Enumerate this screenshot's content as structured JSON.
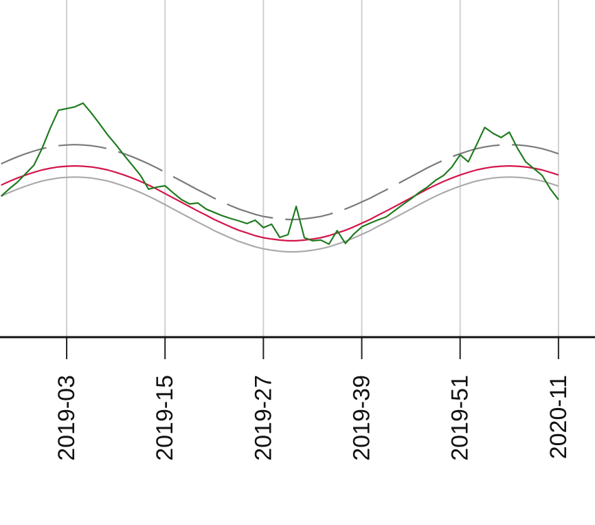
{
  "chart_data": {
    "type": "line",
    "categories": [
      null,
      null,
      null,
      null,
      null,
      null,
      null,
      null,
      "2019-03",
      null,
      null,
      null,
      null,
      null,
      null,
      null,
      null,
      null,
      null,
      null,
      "2019-15",
      null,
      null,
      null,
      null,
      null,
      null,
      null,
      null,
      null,
      null,
      null,
      "2019-27",
      null,
      null,
      null,
      null,
      null,
      null,
      null,
      null,
      null,
      null,
      null,
      "2019-39",
      null,
      null,
      null,
      null,
      null,
      null,
      null,
      null,
      null,
      null,
      null,
      "2019-51",
      null,
      null,
      null,
      null,
      null,
      null,
      null,
      null,
      null,
      null,
      null,
      "2020-11"
    ],
    "ylim": [
      0,
      100
    ],
    "grid": true,
    "series": [
      {
        "color": "#7a7a7a",
        "dashed": true,
        "values": [
          51.4,
          52.5,
          53.5,
          54.4,
          55.2,
          55.9,
          56.4,
          56.8,
          57.0,
          57.1,
          57.0,
          56.8,
          56.4,
          55.9,
          55.2,
          54.4,
          53.5,
          52.5,
          51.4,
          50.2,
          48.9,
          47.6,
          46.3,
          45.0,
          43.7,
          42.5,
          41.2,
          40.1,
          39.0,
          38.0,
          37.2,
          36.4,
          35.8,
          35.4,
          35.1,
          34.9,
          34.9,
          35.1,
          35.4,
          35.8,
          36.4,
          37.2,
          38.0,
          39.0,
          40.1,
          41.2,
          42.5,
          43.7,
          45.0,
          46.3,
          47.6,
          48.9,
          50.2,
          51.4,
          52.5,
          53.5,
          54.4,
          55.2,
          55.9,
          56.4,
          56.8,
          57.0,
          57.1,
          57.0,
          56.8,
          56.4,
          55.9,
          55.2,
          54.4
        ]
      },
      {
        "color": "#aaaaaa",
        "dashed": false,
        "values": [
          41.8,
          42.9,
          43.9,
          44.8,
          45.6,
          46.3,
          46.8,
          47.2,
          47.4,
          47.5,
          47.4,
          47.2,
          46.8,
          46.3,
          45.6,
          44.8,
          43.9,
          42.9,
          41.8,
          40.6,
          39.3,
          38.0,
          36.7,
          35.4,
          34.1,
          32.9,
          31.6,
          30.5,
          29.4,
          28.4,
          27.6,
          26.8,
          26.2,
          25.8,
          25.5,
          25.3,
          25.3,
          25.5,
          25.8,
          26.2,
          26.8,
          27.6,
          28.4,
          29.4,
          30.5,
          31.6,
          32.9,
          34.1,
          35.4,
          36.7,
          38.0,
          39.3,
          40.6,
          41.8,
          42.9,
          43.9,
          44.8,
          45.6,
          46.3,
          46.8,
          47.2,
          47.4,
          47.5,
          47.4,
          47.2,
          46.8,
          46.3,
          45.6,
          44.8
        ]
      },
      {
        "color": "#d4144a",
        "dashed": false,
        "values": [
          45.1,
          46.2,
          47.2,
          48.1,
          48.9,
          49.6,
          50.1,
          50.5,
          50.7,
          50.8,
          50.7,
          50.5,
          50.1,
          49.6,
          48.9,
          48.1,
          47.2,
          46.2,
          45.1,
          43.9,
          42.6,
          41.3,
          40.0,
          38.7,
          37.4,
          36.2,
          34.9,
          33.8,
          32.7,
          31.7,
          30.9,
          30.1,
          29.5,
          29.1,
          28.8,
          28.6,
          28.6,
          28.8,
          29.1,
          29.5,
          30.1,
          30.9,
          31.7,
          32.7,
          33.8,
          34.9,
          36.2,
          37.4,
          38.7,
          40.0,
          41.3,
          42.6,
          43.9,
          45.1,
          46.2,
          47.2,
          48.1,
          48.9,
          49.6,
          50.1,
          50.5,
          50.7,
          50.8,
          50.7,
          50.5,
          50.1,
          49.6,
          48.9,
          48.1
        ]
      },
      {
        "color": "#1f7a1f",
        "dashed": false,
        "values": [
          41.8,
          44,
          46,
          48.5,
          51,
          56,
          62,
          67.3,
          67.8,
          68.3,
          69.4,
          66.5,
          63.3,
          60,
          57.1,
          54,
          51,
          48,
          43.9,
          44.5,
          44.9,
          42.8,
          40.8,
          39.5,
          39.8,
          38,
          37,
          36,
          35.2,
          34.5,
          33.7,
          34.7,
          32.5,
          33.5,
          29.6,
          30.4,
          38.8,
          29.5,
          28.6,
          28.8,
          27.6,
          31.6,
          27.8,
          30.5,
          32.7,
          33.8,
          34.8,
          35.7,
          37.5,
          39.3,
          41,
          42.9,
          44.5,
          46.5,
          48,
          50.5,
          54.1,
          52,
          57,
          62.2,
          60.5,
          59.2,
          60.8,
          56,
          52,
          50,
          48,
          44,
          40.8
        ]
      }
    ]
  }
}
